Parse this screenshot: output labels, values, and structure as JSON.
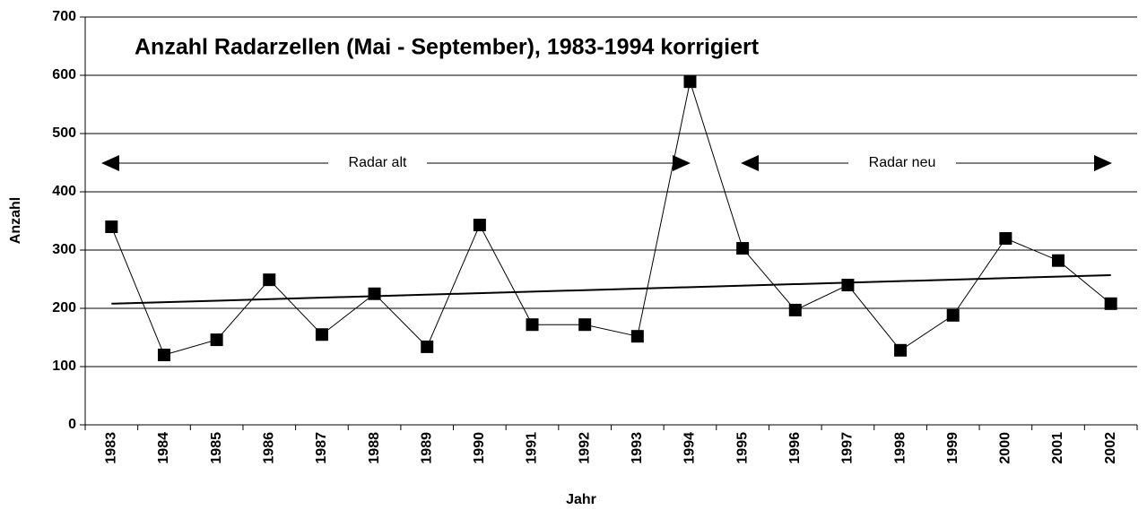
{
  "chart_data": {
    "type": "line",
    "title": "Anzahl Radarzellen (Mai - September), 1983-1994 korrigiert",
    "x_label": "Jahr",
    "y_label": "Anzahl",
    "categories": [
      "1983",
      "1984",
      "1985",
      "1986",
      "1987",
      "1988",
      "1989",
      "1990",
      "1991",
      "1992",
      "1993",
      "1994",
      "1995",
      "1996",
      "1997",
      "1998",
      "1999",
      "2000",
      "2001",
      "2002"
    ],
    "series": [
      {
        "color": "#000000",
        "values": [
          340,
          120,
          146,
          249,
          155,
          225,
          134,
          343,
          172,
          172,
          152,
          589,
          303,
          197,
          240,
          128,
          188,
          320,
          282,
          208
        ]
      }
    ],
    "trendline": {
      "color": "#000000",
      "values": [
        208,
        257
      ]
    },
    "annotations": [
      {
        "text": "Radar alt"
      },
      {
        "text": "Radar neu"
      }
    ],
    "ylim": [
      0,
      700
    ],
    "yticks": [
      0,
      100,
      200,
      300,
      400,
      500,
      600,
      700
    ],
    "grid": true
  }
}
